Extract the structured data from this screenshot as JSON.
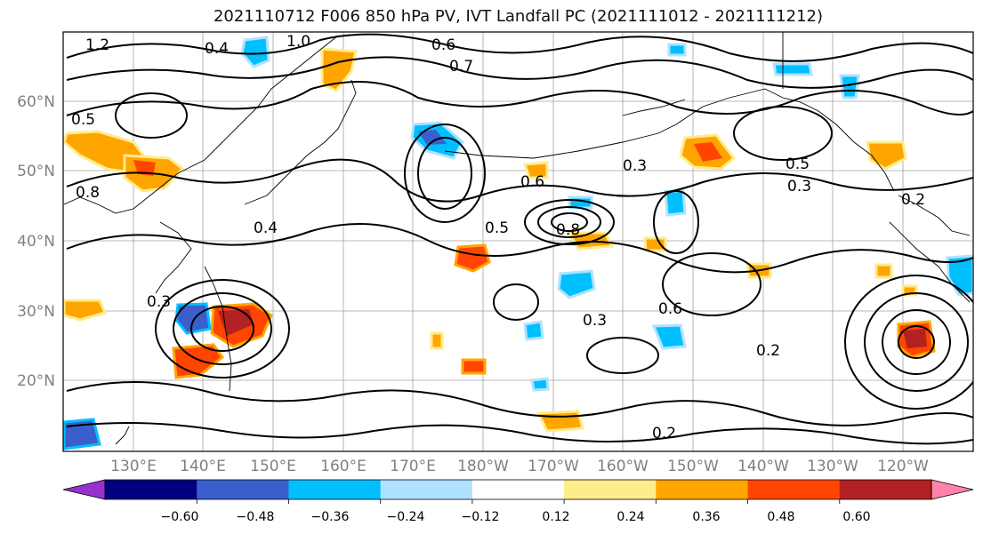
{
  "figure": {
    "title": "2021110712 F006 850 hPa PV, IVT Landfall PC (2021111012 - 2021111212)"
  },
  "map": {
    "lat_labels": [
      "60°N",
      "50°N",
      "40°N",
      "30°N",
      "20°N"
    ],
    "lon_labels": [
      "130°E",
      "140°E",
      "150°E",
      "160°E",
      "170°E",
      "180°W",
      "170°W",
      "160°W",
      "150°W",
      "140°W",
      "130°W",
      "120°W"
    ],
    "contour_labels": [
      "1.2",
      "1.0",
      "0.4",
      "0.6",
      "0.7",
      "0.5",
      "0.8",
      "0.4",
      "0.3",
      "0.5",
      "0.8",
      "0.6",
      "0.3",
      "0.2",
      "0.2",
      "0.3",
      "0.6",
      "0.5",
      "0.2",
      "0.3"
    ]
  },
  "colorbar": {
    "ticks": [
      "−0.60",
      "−0.48",
      "−0.36",
      "−0.24",
      "−0.12",
      "0.12",
      "0.24",
      "0.36",
      "0.48",
      "0.60"
    ],
    "colors": [
      "#9932cc",
      "#000080",
      "#3a5fcd",
      "#00bfff",
      "#b0e2ff",
      "#ffffff",
      "#ffec8b",
      "#ffa500",
      "#ff4500",
      "#b22222",
      "#ff82ab"
    ]
  }
}
